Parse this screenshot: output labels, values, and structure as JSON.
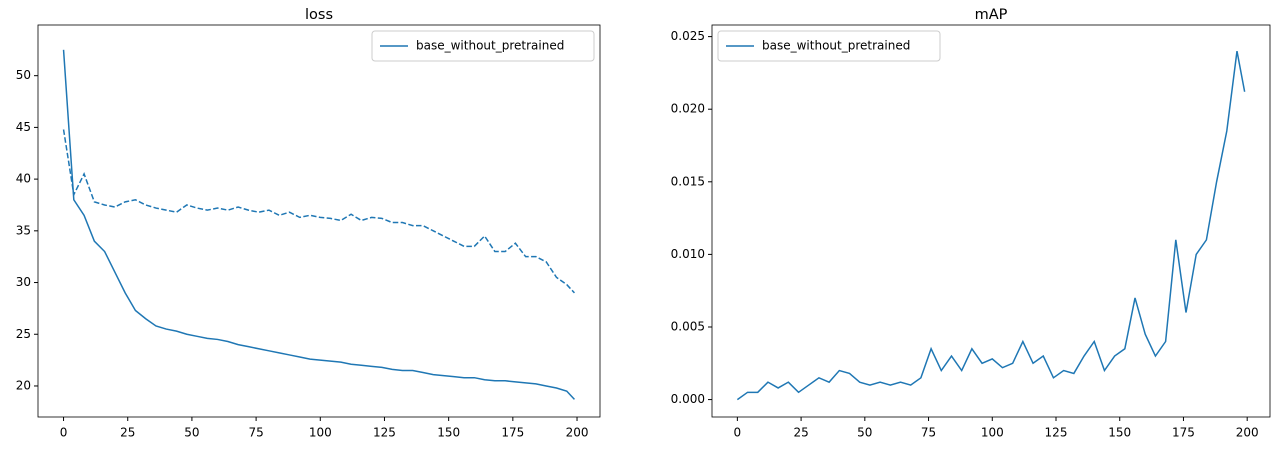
{
  "chart_data": [
    {
      "type": "line",
      "title": "loss",
      "x": [
        0,
        4,
        8,
        12,
        16,
        20,
        24,
        28,
        32,
        36,
        40,
        44,
        48,
        52,
        56,
        60,
        64,
        68,
        72,
        76,
        80,
        84,
        88,
        92,
        96,
        100,
        104,
        108,
        112,
        116,
        120,
        124,
        128,
        132,
        136,
        140,
        144,
        148,
        152,
        156,
        160,
        164,
        168,
        172,
        176,
        180,
        184,
        188,
        192,
        196,
        199
      ],
      "series": [
        {
          "name": "base_without_pretrained",
          "color": "#1f77b4",
          "style": "solid",
          "values": [
            52.5,
            38,
            36.5,
            34,
            33,
            31,
            29,
            27.3,
            26.5,
            25.8,
            25.5,
            25.3,
            25.0,
            24.8,
            24.6,
            24.5,
            24.3,
            24.0,
            23.8,
            23.6,
            23.4,
            23.2,
            23.0,
            22.8,
            22.6,
            22.5,
            22.4,
            22.3,
            22.1,
            22.0,
            21.9,
            21.8,
            21.6,
            21.5,
            21.5,
            21.3,
            21.1,
            21.0,
            20.9,
            20.8,
            20.8,
            20.6,
            20.5,
            20.5,
            20.4,
            20.3,
            20.2,
            20.0,
            19.8,
            19.5,
            18.7
          ]
        },
        {
          "color": "#1f77b4",
          "style": "dashed",
          "values": [
            44.8,
            38.5,
            40.5,
            37.8,
            37.5,
            37.3,
            37.8,
            38.0,
            37.5,
            37.2,
            37.0,
            36.8,
            37.5,
            37.2,
            37.0,
            37.2,
            37.0,
            37.3,
            37.0,
            36.8,
            37.0,
            36.5,
            36.8,
            36.3,
            36.5,
            36.3,
            36.2,
            36.0,
            36.6,
            36.0,
            36.3,
            36.2,
            35.8,
            35.8,
            35.5,
            35.5,
            35.0,
            34.5,
            34.0,
            33.5,
            33.5,
            34.5,
            33.0,
            33.0,
            33.8,
            32.5,
            32.5,
            32.0,
            30.5,
            29.8,
            29.0
          ]
        }
      ],
      "xlim": [
        -9.95,
        208.95
      ],
      "xticks": [
        0,
        25,
        50,
        75,
        100,
        125,
        150,
        175,
        200
      ],
      "ylim": [
        17.0,
        54.9
      ],
      "yticks": [
        20,
        25,
        30,
        35,
        40,
        45,
        50
      ],
      "legend": "upper-right"
    },
    {
      "type": "line",
      "title": "mAP",
      "x": [
        0,
        4,
        8,
        12,
        16,
        20,
        24,
        28,
        32,
        36,
        40,
        44,
        48,
        52,
        56,
        60,
        64,
        68,
        72,
        76,
        80,
        84,
        88,
        92,
        96,
        100,
        104,
        108,
        112,
        116,
        120,
        124,
        128,
        132,
        136,
        140,
        144,
        148,
        152,
        156,
        160,
        164,
        168,
        172,
        176,
        180,
        184,
        188,
        192,
        196,
        199
      ],
      "series": [
        {
          "name": "base_without_pretrained",
          "color": "#1f77b4",
          "style": "solid",
          "values": [
            0.0,
            0.0005,
            0.0005,
            0.0012,
            0.0008,
            0.0012,
            0.0005,
            0.001,
            0.0015,
            0.0012,
            0.002,
            0.0018,
            0.0012,
            0.001,
            0.0012,
            0.001,
            0.0012,
            0.001,
            0.0015,
            0.0035,
            0.002,
            0.003,
            0.002,
            0.0035,
            0.0025,
            0.0028,
            0.0022,
            0.0025,
            0.004,
            0.0025,
            0.003,
            0.0015,
            0.002,
            0.0018,
            0.003,
            0.004,
            0.002,
            0.003,
            0.0035,
            0.007,
            0.0045,
            0.003,
            0.004,
            0.011,
            0.006,
            0.01,
            0.011,
            0.015,
            0.0185,
            0.024,
            0.0212
          ]
        }
      ],
      "xlim": [
        -9.95,
        208.95
      ],
      "xticks": [
        0,
        25,
        50,
        75,
        100,
        125,
        150,
        175,
        200
      ],
      "ylim": [
        -0.0012,
        0.0258
      ],
      "yticks": [
        {
          "value": 0,
          "label": "0.000"
        },
        0.005,
        {
          "value": 0.01,
          "label": "0.010"
        },
        0.015,
        {
          "value": 0.02,
          "label": "0.020"
        },
        0.025
      ],
      "legend": "upper-left"
    }
  ]
}
